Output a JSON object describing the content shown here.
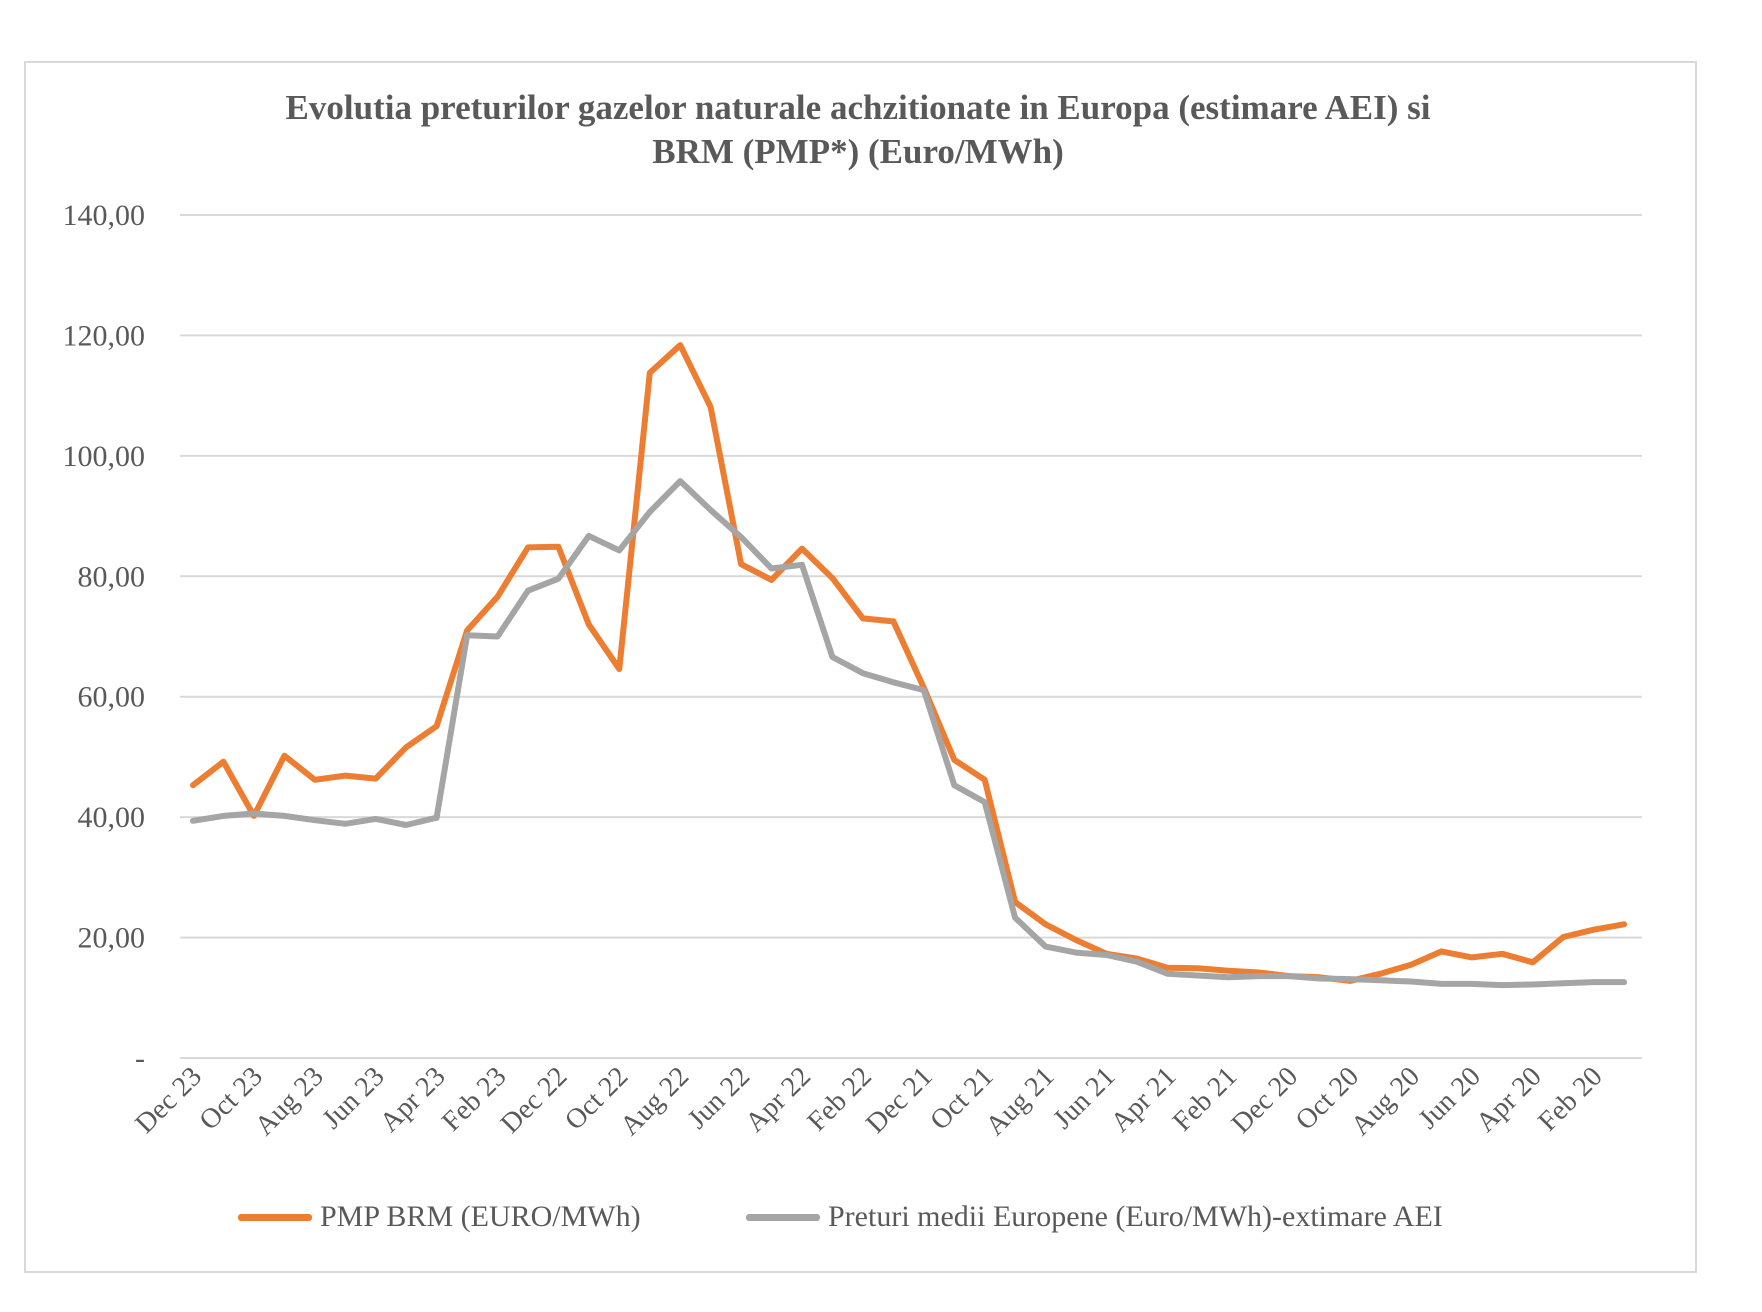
{
  "chart_data": {
    "type": "line",
    "title": "Evolutia preturilor gazelor naturale achzitionate in Europa (estimare AEI) si BRM (PMP*) (Euro/MWh)",
    "title_lines": [
      "Evolutia preturilor gazelor naturale achzitionate in Europa (estimare AEI) si",
      "BRM (PMP*) (Euro/MWh)"
    ],
    "xlabel": "",
    "ylabel": "",
    "ylim": [
      0,
      140
    ],
    "y_ticks": [
      0,
      20,
      40,
      60,
      80,
      100,
      120,
      140
    ],
    "y_tick_labels": [
      "-",
      "20,00",
      "40,00",
      "60,00",
      "80,00",
      "100,00",
      "120,00",
      "140,00"
    ],
    "grid": true,
    "legend_position": "bottom",
    "x": [
      "Dec 23",
      "Nov 23",
      "Oct 23",
      "Sep 23",
      "Aug 23",
      "Jul 23",
      "Jun 23",
      "May 23",
      "Apr 23",
      "Mar 23",
      "Feb 23",
      "Jan 23",
      "Dec 22",
      "Nov 22",
      "Oct 22",
      "Sep 22",
      "Aug 22",
      "Jul 22",
      "Jun 22",
      "May 22",
      "Apr 22",
      "Mar 22",
      "Feb 22",
      "Jan 22",
      "Dec 21",
      "Nov 21",
      "Oct 21",
      "Sep 21",
      "Aug 21",
      "Jul 21",
      "Jun 21",
      "May 21",
      "Apr 21",
      "Mar 21",
      "Feb 21",
      "Jan 21",
      "Dec 20",
      "Nov 20",
      "Oct 20",
      "Sep 20",
      "Aug 20",
      "Jul 20",
      "Jun 20",
      "May 20",
      "Apr 20",
      "Mar 20",
      "Feb 20",
      "Jan 20"
    ],
    "x_tick_labels": [
      "Dec 23",
      "Oct 23",
      "Aug 23",
      "Jun 23",
      "Apr 23",
      "Feb 23",
      "Dec 22",
      "Oct 22",
      "Aug 22",
      "Jun 22",
      "Apr 22",
      "Feb 22",
      "Dec 21",
      "Oct 21",
      "Aug 21",
      "Jun 21",
      "Apr 21",
      "Feb 21",
      "Dec 20",
      "Oct 20",
      "Aug 20",
      "Jun 20",
      "Apr 20",
      "Feb 20"
    ],
    "series": [
      {
        "name": "PMP BRM (EURO/MWh)",
        "color": "#ED7D31",
        "values": [
          45.3,
          49.2,
          40.2,
          50.2,
          46.2,
          46.9,
          46.4,
          51.6,
          55.1,
          71.0,
          76.6,
          84.8,
          84.9,
          72.0,
          64.6,
          113.8,
          118.4,
          108.1,
          82.0,
          79.4,
          84.6,
          79.7,
          73.0,
          72.5,
          61.5,
          49.5,
          46.2,
          25.9,
          22.2,
          19.6,
          17.3,
          16.5,
          15.0,
          14.9,
          14.5,
          14.2,
          13.6,
          13.4,
          12.8,
          14.0,
          15.5,
          17.7,
          16.7,
          17.3,
          15.9,
          20.1,
          21.3,
          22.2
        ]
      },
      {
        "name": "Preturi medii Europene (Euro/MWh)-extimare AEI",
        "color": "#A5A5A5",
        "values": [
          39.4,
          40.2,
          40.6,
          40.2,
          39.5,
          38.9,
          39.7,
          38.7,
          39.9,
          70.2,
          70.0,
          77.6,
          79.6,
          86.7,
          84.3,
          90.7,
          95.8,
          91.0,
          86.5,
          81.3,
          81.9,
          66.6,
          63.9,
          62.4,
          61.1,
          45.3,
          42.5,
          23.3,
          18.5,
          17.5,
          17.1,
          16.0,
          14.0,
          13.7,
          13.4,
          13.6,
          13.6,
          13.2,
          13.1,
          12.9,
          12.7,
          12.3,
          12.3,
          12.1,
          12.2,
          12.4,
          12.6,
          12.6
        ]
      }
    ]
  }
}
